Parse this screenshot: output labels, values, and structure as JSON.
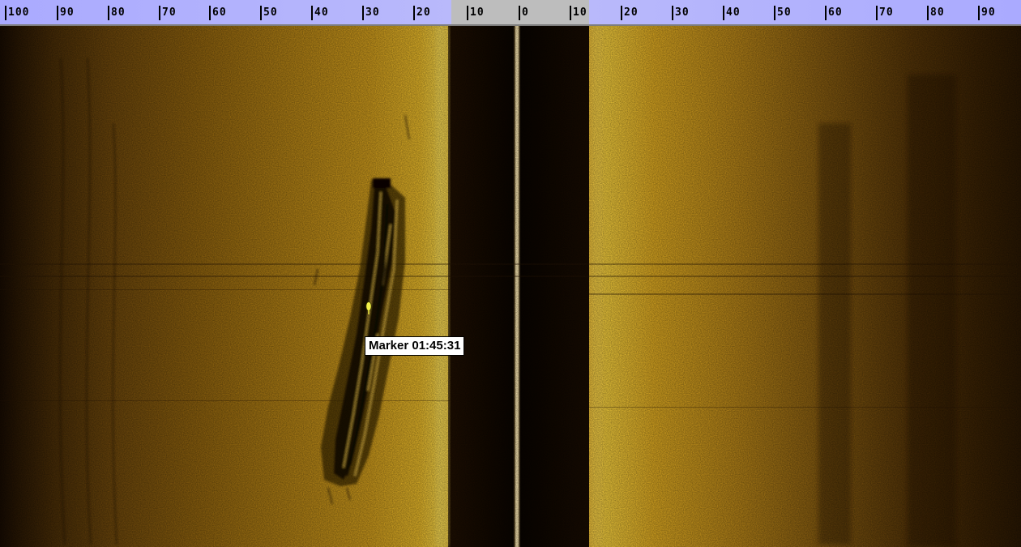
{
  "scale": {
    "left_ticks": [
      "100",
      "90",
      "80",
      "70",
      "60",
      "50",
      "40",
      "30",
      "20",
      "10"
    ],
    "right_ticks": [
      "0",
      "10",
      "20",
      "30",
      "40",
      "50",
      "60",
      "70",
      "80",
      "90"
    ]
  },
  "marker": {
    "label": "Marker 01:45:31"
  },
  "colors": {
    "ruler_band": "#aaaaff",
    "ruler_center": "#bdbdbd",
    "sonar_gold": "#e7b52a",
    "sonar_dark": "#140a02",
    "nadir_line": "#fff4d0",
    "marker_flag": "#f4f04a"
  },
  "icons": {
    "marker_flag": "marker-flag-icon"
  }
}
